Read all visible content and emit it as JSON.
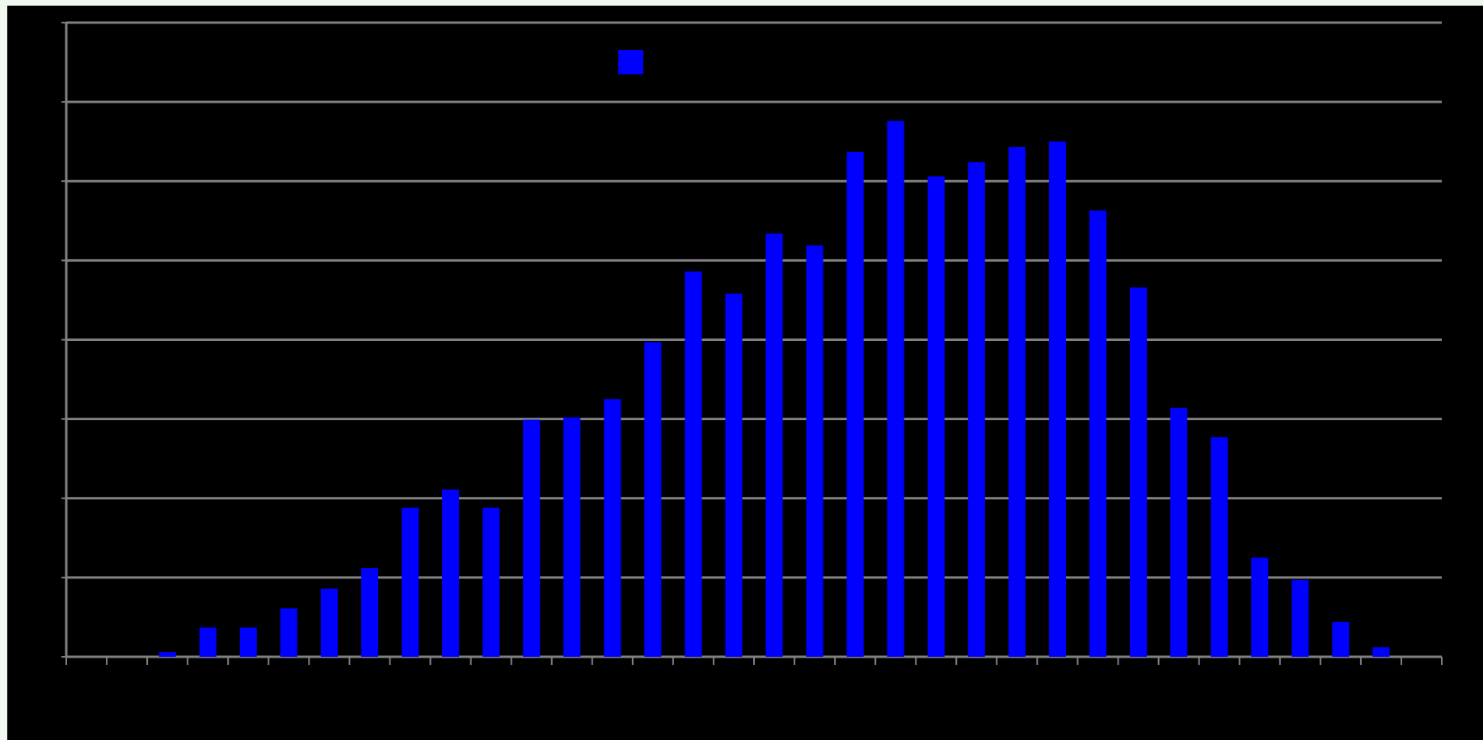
{
  "chart_data": {
    "type": "bar",
    "categories": [
      null,
      null,
      null,
      null,
      null,
      null,
      null,
      null,
      null,
      null,
      null,
      null,
      null,
      null,
      null,
      null,
      null,
      null,
      null,
      null,
      null,
      null,
      null,
      null,
      null,
      null,
      null,
      null,
      null,
      null,
      null,
      null,
      null,
      null
    ],
    "series": [
      {
        "color": "#0000ff",
        "values": [
          0,
          0,
          0.06,
          0.37,
          0.37,
          0.61,
          0.86,
          1.12,
          1.88,
          2.11,
          1.88,
          2.99,
          3.02,
          3.25,
          3.97,
          4.86,
          4.58,
          5.34,
          5.19,
          6.37,
          6.76,
          6.06,
          6.24,
          6.43,
          6.5,
          5.63,
          4.66,
          3.14,
          2.77,
          1.25,
          0.97,
          0.44,
          0.12,
          0
        ]
      }
    ],
    "ylim": [
      0,
      8
    ],
    "yticks": [
      0,
      1,
      2,
      3,
      4,
      5,
      6,
      7,
      8
    ],
    "grid": true,
    "legend": "top"
  }
}
